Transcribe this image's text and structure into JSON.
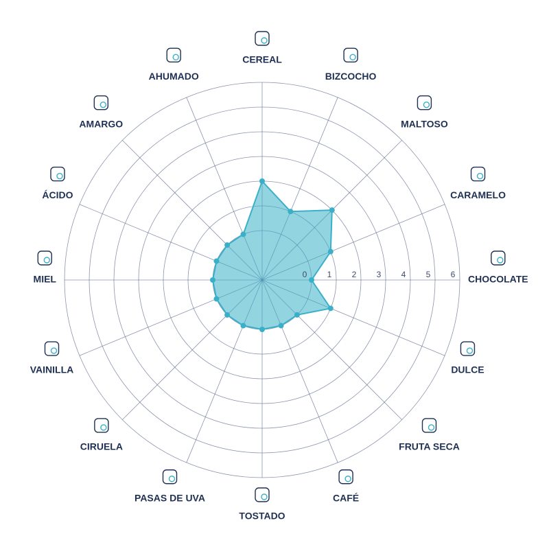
{
  "chart_data": {
    "type": "radar",
    "categories": [
      "CEREAL",
      "BIZCOCHO",
      "MALTOSO",
      "CARAMELO",
      "CHOCOLATE",
      "DULCE",
      "FRUTA SECA",
      "CAFÉ",
      "TOSTADO",
      "PASAS DE UVA",
      "CIRUELA",
      "VAINILLA",
      "MIEL",
      "ÁCIDO",
      "AMARGO",
      "AHUMADO"
    ],
    "values": [
      2,
      1,
      2,
      1,
      0,
      1,
      0,
      0,
      0,
      0,
      0,
      0,
      0,
      0,
      0,
      0
    ],
    "color": "#3ab0c8",
    "ylim": [
      -2,
      6
    ],
    "yticks": [
      0,
      1,
      2,
      3,
      4,
      5,
      6
    ],
    "grid": true
  }
}
